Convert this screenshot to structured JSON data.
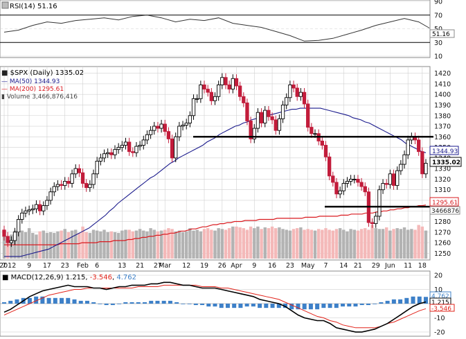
{
  "chart_data": [
    {
      "type": "line",
      "panel": "rsi",
      "label": "RSI(14)",
      "current_value": "51.16",
      "ylim": [
        10,
        90
      ],
      "yticks": [
        "90",
        "70",
        "50",
        "30",
        "10"
      ],
      "overbought": 70,
      "oversold": 30,
      "x": [
        0,
        4,
        8,
        12,
        16,
        20,
        24,
        28,
        32,
        36,
        40,
        44,
        48,
        52,
        56,
        60,
        64,
        68,
        72,
        76,
        80,
        84,
        88,
        92,
        96,
        100,
        104,
        108,
        112,
        116,
        119
      ],
      "values": [
        45,
        48,
        55,
        60,
        58,
        62,
        64,
        66,
        63,
        68,
        70,
        66,
        60,
        64,
        62,
        66,
        58,
        55,
        52,
        46,
        40,
        32,
        33,
        36,
        42,
        48,
        55,
        60,
        65,
        60,
        51
      ]
    },
    {
      "type": "candlestick",
      "panel": "price",
      "symbol": "$SPX",
      "period": "Daily",
      "last_price": "1335.02",
      "ma50_label": "MA(50)",
      "ma50_value": "1344.93",
      "ma200_label": "MA(200)",
      "ma200_value": "1295.61",
      "volume_label": "Volume",
      "volume_value": "3,466,876,416",
      "volume_axis_value": "3466876",
      "ylim": [
        1245,
        1425
      ],
      "yticks": [
        "1420",
        "1410",
        "1400",
        "1390",
        "1380",
        "1370",
        "1360",
        "1350",
        "1340",
        "1330",
        "1320",
        "1310",
        "1300",
        "1290",
        "1280",
        "1270",
        "1260",
        "1250"
      ],
      "x_labels": [
        "7",
        "2012",
        "9",
        "17",
        "23",
        "Feb",
        "6",
        "13",
        "21",
        "27",
        "Mar",
        "12",
        "19",
        "26",
        "Apr",
        "9",
        "16",
        "23",
        "May",
        "7",
        "14",
        "21",
        "29",
        "Jun",
        "11",
        "18"
      ],
      "x_label_positions": [
        0,
        1,
        7,
        12,
        17,
        22,
        26,
        33,
        38,
        43,
        45,
        51,
        56,
        61,
        65,
        70,
        75,
        80,
        85,
        90,
        95,
        99,
        104,
        108,
        113,
        117
      ],
      "closes": [
        1266,
        1260,
        1262,
        1270,
        1282,
        1288,
        1290,
        1291,
        1292,
        1296,
        1290,
        1295,
        1300,
        1308,
        1313,
        1315,
        1314,
        1318,
        1316,
        1325,
        1330,
        1326,
        1316,
        1312,
        1315,
        1325,
        1337,
        1340,
        1344,
        1345,
        1343,
        1348,
        1350,
        1352,
        1355,
        1346,
        1345,
        1351,
        1352,
        1357,
        1362,
        1366,
        1370,
        1368,
        1372,
        1365,
        1358,
        1340,
        1360,
        1370,
        1371,
        1373,
        1380,
        1396,
        1396,
        1409,
        1405,
        1402,
        1394,
        1398,
        1409,
        1416,
        1409,
        1405,
        1415,
        1408,
        1398,
        1392,
        1375,
        1358,
        1368,
        1383,
        1373,
        1385,
        1379,
        1376,
        1366,
        1377,
        1390,
        1397,
        1409,
        1406,
        1398,
        1402,
        1391,
        1369,
        1363,
        1363,
        1356,
        1352,
        1341,
        1323,
        1317,
        1306,
        1309,
        1316,
        1318,
        1320,
        1320,
        1317,
        1313,
        1308,
        1279,
        1278,
        1285,
        1310,
        1316,
        1315,
        1325,
        1314,
        1328,
        1334,
        1343,
        1357,
        1360,
        1357,
        1346,
        1325,
        1335
      ],
      "ma50": [
        1247,
        1247,
        1247,
        1247,
        1247,
        1248,
        1249,
        1250,
        1251,
        1252,
        1253,
        1254,
        1256,
        1258,
        1260,
        1262,
        1264,
        1266,
        1268,
        1270,
        1272,
        1274,
        1277,
        1280,
        1283,
        1286,
        1290,
        1293,
        1297,
        1300,
        1303,
        1306,
        1309,
        1312,
        1315,
        1318,
        1321,
        1323,
        1326,
        1329,
        1332,
        1335,
        1337,
        1340,
        1342,
        1344,
        1346,
        1348,
        1350,
        1352,
        1355,
        1357,
        1359,
        1362,
        1364,
        1366,
        1368,
        1370,
        1371,
        1373,
        1374,
        1376,
        1377,
        1378,
        1379,
        1380,
        1381,
        1382,
        1383,
        1384,
        1385,
        1386,
        1386,
        1387,
        1387,
        1387,
        1387,
        1387,
        1387,
        1386,
        1385,
        1384,
        1383,
        1382,
        1381,
        1380,
        1378,
        1377,
        1376,
        1374,
        1373,
        1371,
        1369,
        1367,
        1365,
        1363,
        1361,
        1359,
        1357,
        1354,
        1352,
        1350,
        1348,
        1346,
        1344.93
      ],
      "ma200": [
        1258,
        1258,
        1258,
        1258,
        1258,
        1258,
        1258,
        1258,
        1258,
        1258,
        1258,
        1258,
        1258,
        1258,
        1258,
        1258,
        1259,
        1259,
        1259,
        1259,
        1259,
        1259,
        1260,
        1260,
        1260,
        1260,
        1260,
        1261,
        1261,
        1261,
        1261,
        1262,
        1262,
        1262,
        1262,
        1263,
        1263,
        1264,
        1264,
        1265,
        1265,
        1266,
        1266,
        1267,
        1267,
        1268,
        1268,
        1269,
        1269,
        1270,
        1271,
        1271,
        1272,
        1273,
        1273,
        1274,
        1275,
        1275,
        1276,
        1277,
        1277,
        1278,
        1278,
        1279,
        1279,
        1280,
        1280,
        1280,
        1281,
        1281,
        1281,
        1281,
        1282,
        1282,
        1282,
        1282,
        1282,
        1283,
        1283,
        1283,
        1283,
        1283,
        1283,
        1283,
        1283,
        1284,
        1284,
        1284,
        1284,
        1285,
        1285,
        1285,
        1285,
        1285,
        1285,
        1286,
        1286,
        1286,
        1287,
        1287,
        1287,
        1287,
        1288,
        1288,
        1288,
        1289,
        1289,
        1290,
        1290,
        1291,
        1291,
        1292,
        1292,
        1293,
        1293,
        1294,
        1294,
        1295,
        1295,
        1295.61
      ],
      "volume_relative": [
        0.35,
        0.25,
        0.3,
        0.35,
        0.32,
        0.35,
        0.33,
        0.38,
        0.32,
        0.3,
        0.34,
        0.35,
        0.32,
        0.33,
        0.32,
        0.34,
        0.35,
        0.37,
        0.33,
        0.35,
        0.36,
        0.32,
        0.4,
        0.33,
        0.32,
        0.36,
        0.35,
        0.34,
        0.36,
        0.33,
        0.34,
        0.33,
        0.32,
        0.35,
        0.36,
        0.36,
        0.34,
        0.35,
        0.37,
        0.35,
        0.34,
        0.38,
        0.36,
        0.34,
        0.35,
        0.36,
        0.38,
        0.37,
        0.34,
        0.35,
        0.33,
        0.34,
        0.38,
        0.35,
        0.36,
        0.34,
        0.37,
        0.38,
        0.36,
        0.35,
        0.38,
        0.37,
        0.36,
        0.38,
        0.4,
        0.4,
        0.39,
        0.38,
        0.36,
        0.4,
        0.38,
        0.4,
        0.37,
        0.39,
        0.38,
        0.4,
        0.38,
        0.39,
        0.37,
        0.36,
        0.35,
        0.37,
        0.38,
        0.39,
        0.36,
        0.37,
        0.36,
        0.35,
        0.37,
        0.36,
        0.38,
        0.36,
        0.35,
        0.37,
        0.38,
        0.36,
        0.34,
        0.37,
        0.36,
        0.35,
        0.37,
        0.38,
        0.36,
        0.42,
        0.38,
        0.37,
        0.37,
        0.39,
        0.35,
        0.37,
        0.38,
        0.37,
        0.39,
        0.36,
        0.37,
        0.36,
        0.42,
        0.4,
        0.35
      ],
      "resistance_level": 1360,
      "support_level": 1294
    },
    {
      "type": "line",
      "panel": "macd",
      "label": "MACD(12,26,9)",
      "macd_value": "1.215",
      "signal_value": "-3.546",
      "histogram_value": "4.762",
      "axis_macd_value": "1.215",
      "axis_signal_value": "-3.546",
      "axis_histogram_value": "4.762",
      "ylim": [
        -22,
        22
      ],
      "yticks": [
        "20",
        "10",
        "0",
        "-10",
        "-20"
      ],
      "macd": [
        -6,
        -4,
        -1,
        2,
        5,
        7,
        9,
        10,
        11,
        12,
        13,
        12,
        12,
        12,
        11,
        11,
        10,
        11,
        12,
        12,
        13,
        13,
        13,
        14,
        14,
        15,
        15,
        14,
        13,
        13,
        12,
        11,
        11,
        11,
        10,
        9,
        8,
        7,
        6,
        5,
        3,
        2,
        1,
        0,
        -2,
        -5,
        -8,
        -10,
        -11,
        -12,
        -12,
        -14,
        -17,
        -18,
        -19,
        -20,
        -20,
        -19,
        -18,
        -16,
        -14,
        -11,
        -8,
        -5,
        -2,
        0,
        1.215
      ],
      "signal": [
        -8,
        -6,
        -4,
        -2,
        0,
        2,
        4,
        6,
        7,
        8,
        9,
        10,
        10,
        11,
        11,
        11,
        11,
        11,
        11,
        11,
        11,
        12,
        12,
        12,
        12,
        13,
        13,
        13,
        13,
        13,
        13,
        12,
        12,
        12,
        11,
        11,
        10,
        9,
        8,
        7,
        6,
        5,
        4,
        3,
        1,
        -1,
        -3,
        -5,
        -7,
        -9,
        -10,
        -12,
        -13,
        -15,
        -16,
        -17,
        -17,
        -17,
        -17,
        -16,
        -14,
        -13,
        -11,
        -9,
        -7,
        -5,
        -3.546
      ],
      "histogram": [
        1,
        2,
        3,
        4,
        4,
        5,
        5,
        4,
        4,
        4,
        4,
        3,
        2,
        2,
        1,
        0,
        -1,
        -1,
        0,
        1,
        1,
        1,
        1,
        2,
        2,
        2,
        2,
        1,
        0,
        0,
        -1,
        -1,
        -2,
        -2,
        -3,
        -3,
        -3,
        -3,
        -2,
        -2,
        -3,
        -3,
        -3,
        -3,
        -3,
        -4,
        -4,
        -4,
        -4,
        -4,
        -3,
        -3,
        -3,
        -2,
        -2,
        -2,
        -1,
        -1,
        0,
        1,
        2,
        3,
        3,
        4,
        5,
        5,
        4.762
      ]
    }
  ],
  "colors": {
    "up_candle": "#000000",
    "down_candle": "#c21c3b",
    "ma50": "#1a1a8c",
    "ma200": "#d9191e",
    "volume_up": "#b3b3b3",
    "volume_down": "#f4b9b9",
    "macd_line": "#000000",
    "signal_line": "#e2231a",
    "histogram": "#3d80c8",
    "rsi_fill": "#7f7f7f",
    "grid": "#d0d0d0"
  }
}
